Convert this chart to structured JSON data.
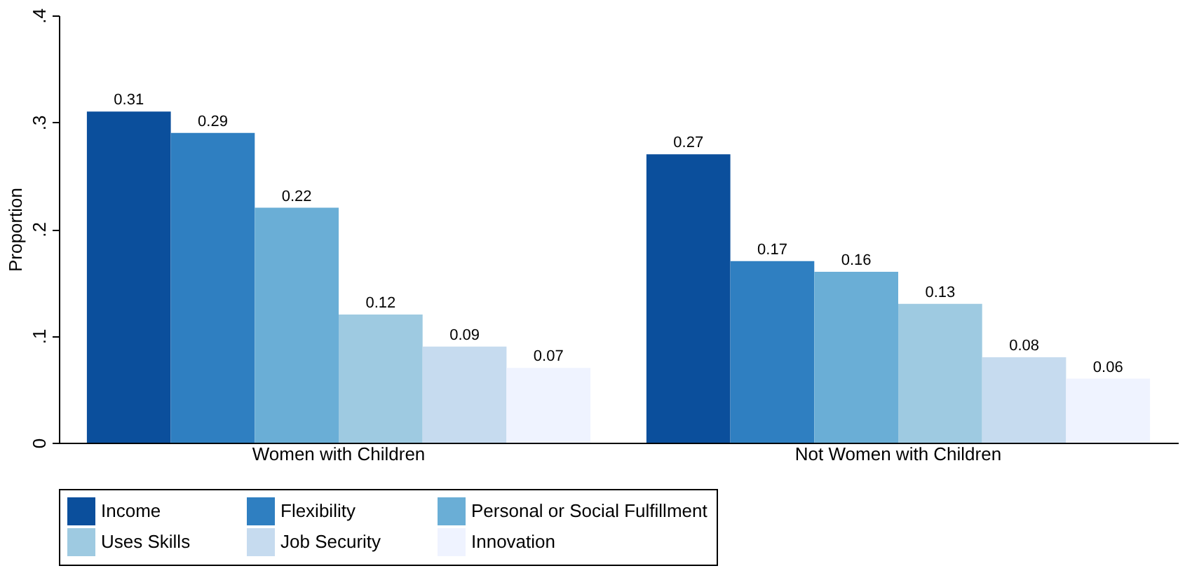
{
  "chart_data": {
    "type": "bar",
    "ylabel": "Proportion",
    "categories": [
      "Women with Children",
      "Not Women with Children"
    ],
    "series": [
      {
        "name": "Income",
        "color": "#0b4f9c",
        "values": [
          0.31,
          0.27
        ]
      },
      {
        "name": "Flexibility",
        "color": "#2f7fc1",
        "values": [
          0.29,
          0.17
        ]
      },
      {
        "name": "Personal or Social Fulfillment",
        "color": "#6aaed6",
        "values": [
          0.22,
          0.16
        ]
      },
      {
        "name": "Uses Skills",
        "color": "#9ecae1",
        "values": [
          0.12,
          0.13
        ]
      },
      {
        "name": "Job Security",
        "color": "#c6dbef",
        "values": [
          0.09,
          0.08
        ]
      },
      {
        "name": "Innovation",
        "color": "#eff3ff",
        "values": [
          0.07,
          0.06
        ]
      }
    ],
    "ylim": [
      0,
      0.4
    ],
    "yticks": [
      0,
      {
        "value": 0.1,
        "label": ".1"
      },
      {
        "value": 0.2,
        "label": ".2"
      },
      {
        "value": 0.3,
        "label": ".3"
      },
      {
        "value": 0.4,
        "label": ".4"
      }
    ],
    "data_labels": true,
    "grid": false,
    "legend": "bottom"
  }
}
